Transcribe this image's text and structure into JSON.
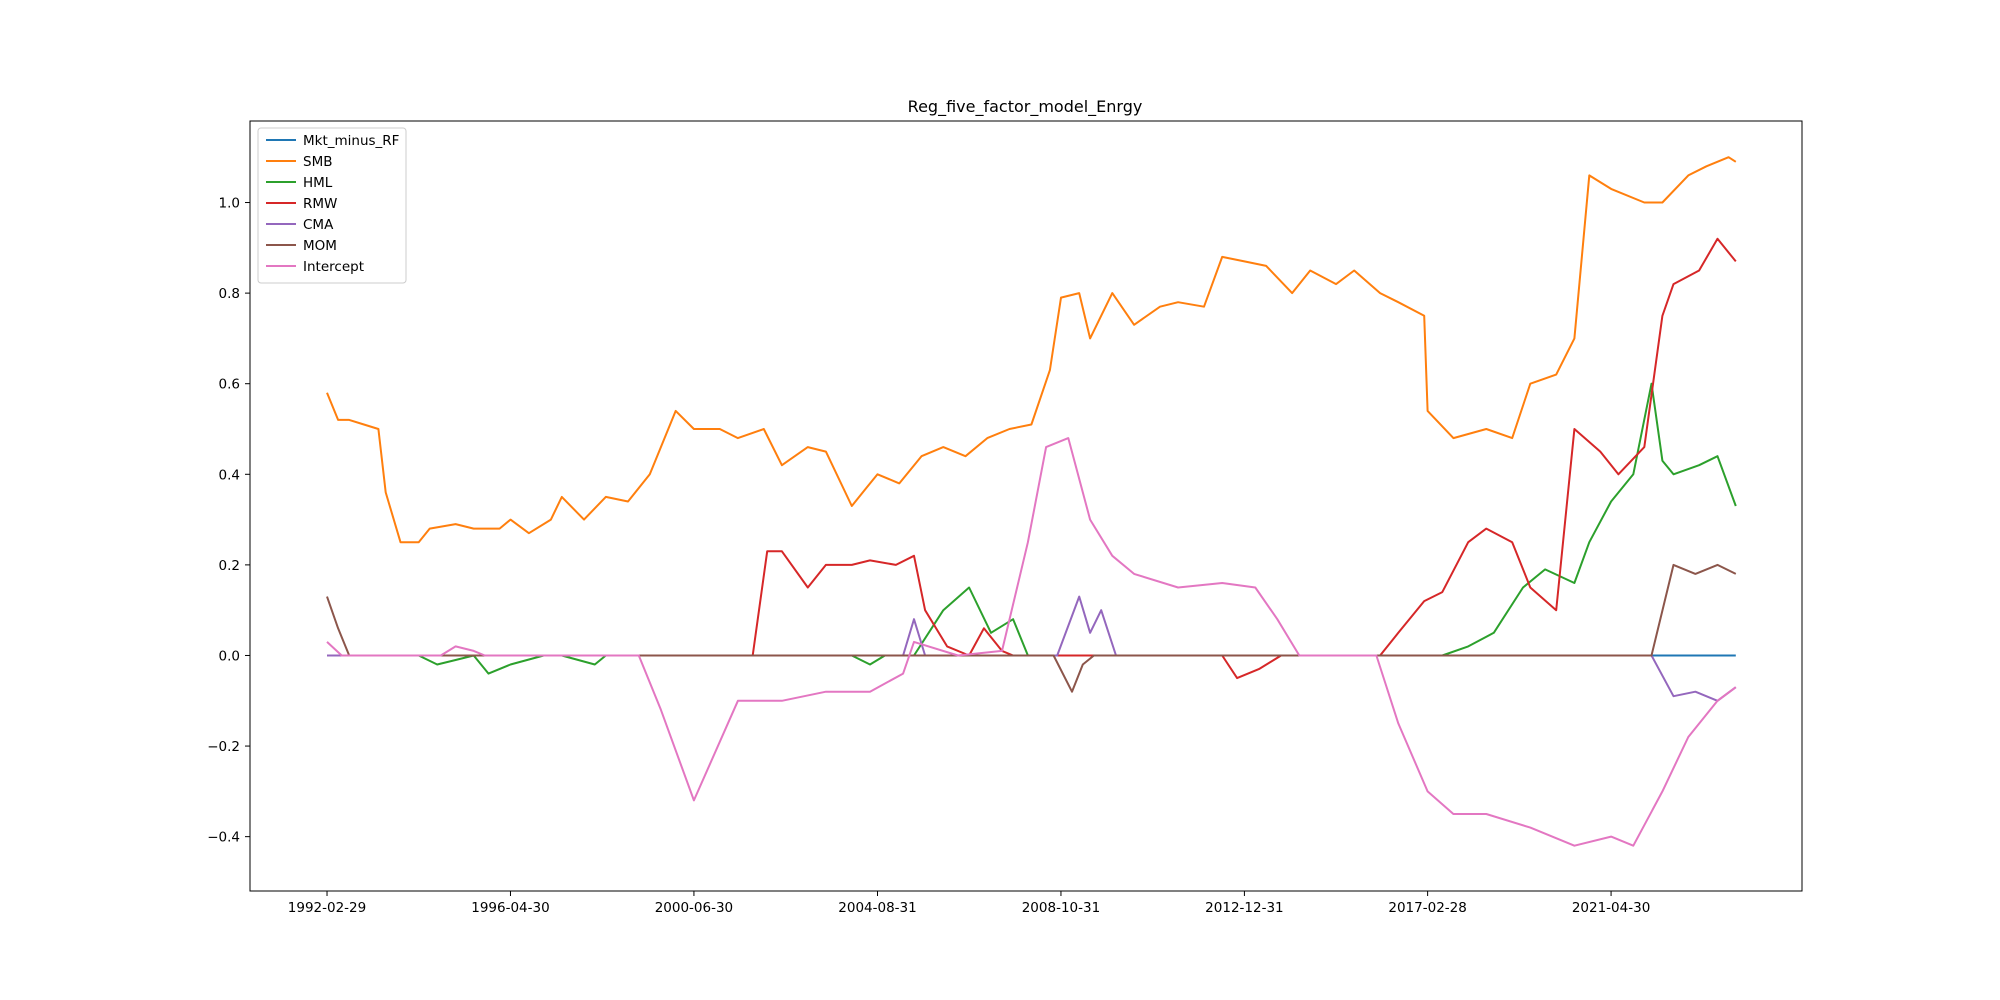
{
  "chart_data": {
    "type": "line",
    "title": "Reg_five_factor_model_Enrgy",
    "xlabel": "",
    "ylabel": "",
    "x_tick_labels": [
      "1992-02-29",
      "1996-04-30",
      "2000-06-30",
      "2004-08-31",
      "2008-10-31",
      "2012-12-31",
      "2017-02-28",
      "2021-04-30"
    ],
    "y_ticks": [
      -0.4,
      -0.2,
      0.0,
      0.2,
      0.4,
      0.6,
      0.8,
      1.0
    ],
    "y_tick_labels": [
      "−0.4",
      "−0.2",
      "0.0",
      "0.2",
      "0.4",
      "0.6",
      "0.8",
      "1.0"
    ],
    "ylim": [
      -0.52,
      1.18
    ],
    "xlim": [
      "1990-05-31",
      "2025-08-31"
    ],
    "grid": false,
    "legend_position": "upper left",
    "series": [
      {
        "name": "Mkt_minus_RF",
        "color": "#1f77b4",
        "points": [
          [
            "1992-02-29",
            0.0
          ],
          [
            "2020-06-30",
            0.0
          ],
          [
            "2022-03-31",
            0.0
          ],
          [
            "2024-02-29",
            0.0
          ]
        ]
      },
      {
        "name": "SMB",
        "color": "#ff7f0e",
        "points": [
          [
            "1992-02-29",
            0.58
          ],
          [
            "1992-05-31",
            0.52
          ],
          [
            "1992-08-31",
            0.52
          ],
          [
            "1992-12-31",
            0.51
          ],
          [
            "1993-04-30",
            0.5
          ],
          [
            "1993-06-30",
            0.36
          ],
          [
            "1993-10-31",
            0.25
          ],
          [
            "1994-03-31",
            0.25
          ],
          [
            "1994-06-30",
            0.28
          ],
          [
            "1995-01-31",
            0.29
          ],
          [
            "1995-06-30",
            0.28
          ],
          [
            "1996-01-31",
            0.28
          ],
          [
            "1996-04-30",
            0.3
          ],
          [
            "1996-09-30",
            0.27
          ],
          [
            "1997-03-31",
            0.3
          ],
          [
            "1997-06-30",
            0.35
          ],
          [
            "1997-12-31",
            0.3
          ],
          [
            "1998-06-30",
            0.35
          ],
          [
            "1998-12-31",
            0.34
          ],
          [
            "1999-06-30",
            0.4
          ],
          [
            "2000-01-31",
            0.54
          ],
          [
            "2000-06-30",
            0.5
          ],
          [
            "2001-01-31",
            0.5
          ],
          [
            "2001-06-30",
            0.48
          ],
          [
            "2002-01-31",
            0.5
          ],
          [
            "2002-06-30",
            0.42
          ],
          [
            "2003-01-31",
            0.46
          ],
          [
            "2003-06-30",
            0.45
          ],
          [
            "2004-01-31",
            0.33
          ],
          [
            "2004-05-31",
            0.37
          ],
          [
            "2004-08-31",
            0.4
          ],
          [
            "2005-02-28",
            0.38
          ],
          [
            "2005-08-31",
            0.44
          ],
          [
            "2006-02-28",
            0.46
          ],
          [
            "2006-08-31",
            0.44
          ],
          [
            "2007-02-28",
            0.48
          ],
          [
            "2007-08-31",
            0.5
          ],
          [
            "2008-02-29",
            0.51
          ],
          [
            "2008-07-31",
            0.63
          ],
          [
            "2008-10-31",
            0.79
          ],
          [
            "2009-03-31",
            0.8
          ],
          [
            "2009-06-30",
            0.7
          ],
          [
            "2009-12-31",
            0.8
          ],
          [
            "2010-06-30",
            0.73
          ],
          [
            "2011-01-31",
            0.77
          ],
          [
            "2011-06-30",
            0.78
          ],
          [
            "2012-01-31",
            0.77
          ],
          [
            "2012-06-30",
            0.88
          ],
          [
            "2012-12-31",
            0.87
          ],
          [
            "2013-06-30",
            0.86
          ],
          [
            "2014-01-31",
            0.8
          ],
          [
            "2014-06-30",
            0.85
          ],
          [
            "2015-01-31",
            0.82
          ],
          [
            "2015-06-30",
            0.85
          ],
          [
            "2016-01-31",
            0.8
          ],
          [
            "2016-06-30",
            0.78
          ],
          [
            "2017-01-31",
            0.75
          ],
          [
            "2017-02-28",
            0.54
          ],
          [
            "2017-09-30",
            0.48
          ],
          [
            "2018-06-30",
            0.5
          ],
          [
            "2019-01-31",
            0.48
          ],
          [
            "2019-06-30",
            0.6
          ],
          [
            "2020-01-31",
            0.62
          ],
          [
            "2020-06-30",
            0.7
          ],
          [
            "2020-10-31",
            1.06
          ],
          [
            "2021-04-30",
            1.03
          ],
          [
            "2022-01-31",
            1.0
          ],
          [
            "2022-06-30",
            1.0
          ],
          [
            "2023-01-31",
            1.06
          ],
          [
            "2023-06-30",
            1.08
          ],
          [
            "2023-12-31",
            1.1
          ],
          [
            "2024-02-29",
            1.09
          ]
        ]
      },
      {
        "name": "HML",
        "color": "#2ca02c",
        "points": [
          [
            "1992-02-29",
            0.0
          ],
          [
            "1994-03-31",
            0.0
          ],
          [
            "1994-08-31",
            -0.02
          ],
          [
            "1995-01-31",
            -0.01
          ],
          [
            "1995-06-30",
            0.0
          ],
          [
            "1995-10-31",
            -0.04
          ],
          [
            "1996-04-30",
            -0.02
          ],
          [
            "1997-01-31",
            0.0
          ],
          [
            "1997-06-30",
            0.0
          ],
          [
            "1998-03-31",
            -0.02
          ],
          [
            "1998-06-30",
            0.0
          ],
          [
            "2004-01-31",
            0.0
          ],
          [
            "2004-06-30",
            -0.02
          ],
          [
            "2004-10-31",
            0.0
          ],
          [
            "2005-06-30",
            0.0
          ],
          [
            "2006-02-28",
            0.1
          ],
          [
            "2006-09-30",
            0.15
          ],
          [
            "2007-03-31",
            0.05
          ],
          [
            "2007-09-30",
            0.08
          ],
          [
            "2008-01-31",
            0.0
          ],
          [
            "2017-06-30",
            0.0
          ],
          [
            "2018-01-31",
            0.02
          ],
          [
            "2018-08-31",
            0.05
          ],
          [
            "2019-04-30",
            0.15
          ],
          [
            "2019-10-31",
            0.19
          ],
          [
            "2020-06-30",
            0.16
          ],
          [
            "2020-10-31",
            0.25
          ],
          [
            "2021-04-30",
            0.34
          ],
          [
            "2021-10-31",
            0.4
          ],
          [
            "2022-03-31",
            0.6
          ],
          [
            "2022-06-30",
            0.43
          ],
          [
            "2022-09-30",
            0.4
          ],
          [
            "2023-04-30",
            0.42
          ],
          [
            "2023-09-30",
            0.44
          ],
          [
            "2024-02-29",
            0.33
          ]
        ]
      },
      {
        "name": "RMW",
        "color": "#d62728",
        "points": [
          [
            "1992-02-29",
            0.0
          ],
          [
            "2001-10-31",
            0.0
          ],
          [
            "2002-02-28",
            0.23
          ],
          [
            "2002-06-30",
            0.23
          ],
          [
            "2003-01-31",
            0.15
          ],
          [
            "2003-06-30",
            0.2
          ],
          [
            "2004-01-31",
            0.2
          ],
          [
            "2004-06-30",
            0.21
          ],
          [
            "2005-01-31",
            0.2
          ],
          [
            "2005-06-30",
            0.22
          ],
          [
            "2005-09-30",
            0.1
          ],
          [
            "2006-03-31",
            0.02
          ],
          [
            "2006-09-30",
            0.0
          ],
          [
            "2007-01-31",
            0.06
          ],
          [
            "2007-06-30",
            0.01
          ],
          [
            "2007-09-30",
            0.0
          ],
          [
            "2012-06-30",
            0.0
          ],
          [
            "2012-10-31",
            -0.05
          ],
          [
            "2013-04-30",
            -0.03
          ],
          [
            "2013-10-31",
            0.0
          ],
          [
            "2016-01-31",
            0.0
          ],
          [
            "2016-06-30",
            0.05
          ],
          [
            "2017-01-31",
            0.12
          ],
          [
            "2017-06-30",
            0.14
          ],
          [
            "2018-01-31",
            0.25
          ],
          [
            "2018-06-30",
            0.28
          ],
          [
            "2019-01-31",
            0.25
          ],
          [
            "2019-06-30",
            0.15
          ],
          [
            "2020-01-31",
            0.1
          ],
          [
            "2020-06-30",
            0.5
          ],
          [
            "2021-01-31",
            0.45
          ],
          [
            "2021-06-30",
            0.4
          ],
          [
            "2022-01-31",
            0.46
          ],
          [
            "2022-06-30",
            0.75
          ],
          [
            "2022-09-30",
            0.82
          ],
          [
            "2023-04-30",
            0.85
          ],
          [
            "2023-09-30",
            0.92
          ],
          [
            "2024-02-29",
            0.87
          ]
        ]
      },
      {
        "name": "CMA",
        "color": "#9467bd",
        "points": [
          [
            "1992-02-29",
            0.0
          ],
          [
            "2005-03-31",
            0.0
          ],
          [
            "2005-06-30",
            0.08
          ],
          [
            "2005-09-30",
            0.0
          ],
          [
            "2008-09-30",
            0.0
          ],
          [
            "2009-03-31",
            0.13
          ],
          [
            "2009-06-30",
            0.05
          ],
          [
            "2009-09-30",
            0.1
          ],
          [
            "2010-01-31",
            0.0
          ],
          [
            "2022-03-31",
            0.0
          ],
          [
            "2022-09-30",
            -0.09
          ],
          [
            "2023-03-31",
            -0.08
          ],
          [
            "2023-09-30",
            -0.1
          ],
          [
            "2024-02-29",
            -0.07
          ]
        ]
      },
      {
        "name": "MOM",
        "color": "#8c564b",
        "points": [
          [
            "1992-02-29",
            0.13
          ],
          [
            "1992-05-31",
            0.06
          ],
          [
            "1992-08-31",
            0.0
          ],
          [
            "2008-08-31",
            0.0
          ],
          [
            "2009-01-31",
            -0.08
          ],
          [
            "2009-04-30",
            -0.02
          ],
          [
            "2009-07-31",
            0.0
          ],
          [
            "2022-03-31",
            0.0
          ],
          [
            "2022-09-30",
            0.2
          ],
          [
            "2023-03-31",
            0.18
          ],
          [
            "2023-09-30",
            0.2
          ],
          [
            "2024-02-29",
            0.18
          ]
        ]
      },
      {
        "name": "Intercept",
        "color": "#e377c2",
        "points": [
          [
            "1992-02-29",
            0.03
          ],
          [
            "1992-06-30",
            0.0
          ],
          [
            "1994-09-30",
            0.0
          ],
          [
            "1995-01-31",
            0.02
          ],
          [
            "1995-06-30",
            0.01
          ],
          [
            "1995-09-30",
            0.0
          ],
          [
            "1999-03-31",
            0.0
          ],
          [
            "1999-09-30",
            -0.12
          ],
          [
            "2000-06-30",
            -0.32
          ],
          [
            "2001-06-30",
            -0.1
          ],
          [
            "2002-06-30",
            -0.1
          ],
          [
            "2003-06-30",
            -0.08
          ],
          [
            "2004-06-30",
            -0.08
          ],
          [
            "2005-03-31",
            -0.04
          ],
          [
            "2005-06-30",
            0.03
          ],
          [
            "2006-06-30",
            0.0
          ],
          [
            "2007-06-30",
            0.01
          ],
          [
            "2008-01-31",
            0.25
          ],
          [
            "2008-06-30",
            0.46
          ],
          [
            "2008-12-31",
            0.48
          ],
          [
            "2009-06-30",
            0.3
          ],
          [
            "2009-12-31",
            0.22
          ],
          [
            "2010-06-30",
            0.18
          ],
          [
            "2011-06-30",
            0.15
          ],
          [
            "2012-06-30",
            0.16
          ],
          [
            "2013-03-31",
            0.15
          ],
          [
            "2013-09-30",
            0.08
          ],
          [
            "2014-03-31",
            0.0
          ],
          [
            "2015-12-31",
            0.0
          ],
          [
            "2016-06-30",
            -0.15
          ],
          [
            "2017-02-28",
            -0.3
          ],
          [
            "2017-09-30",
            -0.35
          ],
          [
            "2018-06-30",
            -0.35
          ],
          [
            "2019-06-30",
            -0.38
          ],
          [
            "2020-06-30",
            -0.42
          ],
          [
            "2021-04-30",
            -0.4
          ],
          [
            "2021-10-31",
            -0.42
          ],
          [
            "2022-06-30",
            -0.3
          ],
          [
            "2023-01-31",
            -0.18
          ],
          [
            "2023-09-30",
            -0.1
          ],
          [
            "2024-02-29",
            -0.07
          ]
        ]
      }
    ]
  }
}
